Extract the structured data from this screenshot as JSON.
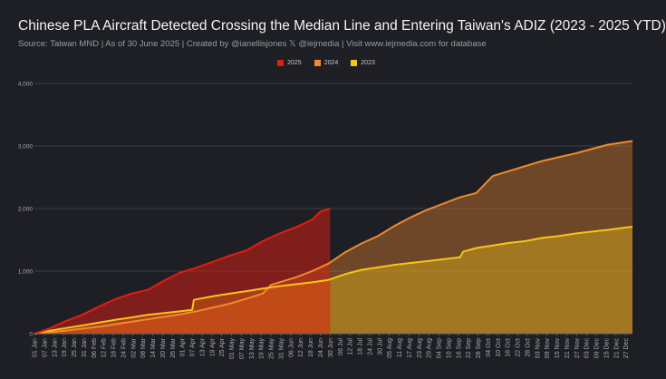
{
  "header": {
    "title": "Chinese PLA Aircraft Detected Crossing the Median Line and Entering Taiwan's ADIZ (2023 - 2025 YTD)",
    "subtitle": "Source: Taiwan MND | As of 30 June 2025 | Created by @ianellisjones 𝕏 @iejmedia | Visit www.iejmedia.com for database"
  },
  "legend": [
    {
      "label": "2025",
      "color": "#e01e10"
    },
    {
      "label": "2024",
      "color": "#f08a2c"
    },
    {
      "label": "2023",
      "color": "#f7c418"
    }
  ],
  "chart_data": {
    "type": "area",
    "title": "Chinese PLA Aircraft Detected Crossing the Median Line and Entering Taiwan's ADIZ (2023 - 2025 YTD)",
    "xlabel": "",
    "ylabel": "",
    "x_unit": "day of year",
    "xlim": [
      1,
      365
    ],
    "ylim": [
      0,
      4000
    ],
    "y_ticks": [
      0,
      1000,
      2000,
      3000,
      4000
    ],
    "y_tick_labels": [
      "0",
      "1,000",
      "2,000",
      "3,000",
      "4,000"
    ],
    "x_ticks": [
      1,
      7,
      13,
      19,
      25,
      31,
      37,
      43,
      49,
      55,
      61,
      67,
      73,
      79,
      85,
      91,
      97,
      103,
      109,
      115,
      121,
      127,
      133,
      139,
      145,
      151,
      157,
      163,
      169,
      175,
      181,
      187,
      193,
      199,
      205,
      211,
      217,
      223,
      229,
      235,
      241,
      247,
      253,
      259,
      265,
      271,
      277,
      283,
      289,
      295,
      301,
      307,
      313,
      319,
      325,
      331,
      337,
      343,
      349,
      355,
      361
    ],
    "x_tick_labels": [
      "01 Jan",
      "07 Jan",
      "13 Jan",
      "19 Jan",
      "25 Jan",
      "31 Jan",
      "06 Feb",
      "12 Feb",
      "18 Feb",
      "24 Feb",
      "02 Mar",
      "08 Mar",
      "14 Mar",
      "20 Mar",
      "26 Mar",
      "01 Apr",
      "07 Apr",
      "13 Apr",
      "19 Apr",
      "25 Apr",
      "01 May",
      "07 May",
      "13 May",
      "19 May",
      "25 May",
      "31 May",
      "06 Jun",
      "12 Jun",
      "18 Jun",
      "24 Jun",
      "30 Jun",
      "06 Jul",
      "12 Jul",
      "18 Jul",
      "24 Jul",
      "30 Jul",
      "05 Aug",
      "11 Aug",
      "17 Aug",
      "23 Aug",
      "29 Aug",
      "04 Sep",
      "10 Sep",
      "16 Sep",
      "22 Sep",
      "28 Sep",
      "04 Oct",
      "10 Oct",
      "16 Oct",
      "22 Oct",
      "28 Oct",
      "03 Nov",
      "09 Nov",
      "15 Nov",
      "21 Nov",
      "27 Nov",
      "03 Dec",
      "09 Dec",
      "15 Dec",
      "21 Dec",
      "27 Dec"
    ],
    "grid": true,
    "legend_position": "top-center",
    "series": [
      {
        "name": "2023",
        "color": "#f7c418",
        "x": [
          1,
          10,
          20,
          30,
          40,
          50,
          60,
          70,
          80,
          90,
          97,
          98,
          110,
          120,
          130,
          140,
          150,
          160,
          170,
          180,
          190,
          200,
          210,
          220,
          230,
          240,
          250,
          260,
          262,
          270,
          280,
          290,
          300,
          310,
          320,
          330,
          340,
          350,
          365
        ],
        "values": [
          0,
          45,
          90,
          130,
          175,
          220,
          260,
          300,
          330,
          360,
          380,
          540,
          600,
          640,
          680,
          720,
          760,
          790,
          820,
          860,
          950,
          1020,
          1060,
          1100,
          1130,
          1160,
          1190,
          1220,
          1310,
          1370,
          1410,
          1450,
          1480,
          1530,
          1560,
          1600,
          1630,
          1660,
          1710
        ]
      },
      {
        "name": "2024",
        "color": "#f08a2c",
        "x": [
          1,
          10,
          20,
          30,
          40,
          50,
          60,
          70,
          80,
          90,
          100,
          110,
          120,
          130,
          140,
          145,
          150,
          160,
          170,
          180,
          190,
          200,
          210,
          220,
          230,
          240,
          250,
          260,
          270,
          280,
          290,
          300,
          310,
          320,
          330,
          340,
          350,
          365
        ],
        "values": [
          0,
          20,
          50,
          80,
          110,
          150,
          190,
          230,
          270,
          310,
          360,
          420,
          480,
          560,
          640,
          780,
          820,
          900,
          1000,
          1120,
          1300,
          1440,
          1560,
          1720,
          1860,
          1980,
          2080,
          2180,
          2250,
          2520,
          2600,
          2680,
          2760,
          2820,
          2880,
          2950,
          3020,
          3080
        ]
      },
      {
        "name": "2025",
        "color": "#e01e10",
        "x": [
          1,
          10,
          20,
          30,
          40,
          50,
          60,
          70,
          80,
          90,
          100,
          110,
          120,
          130,
          140,
          150,
          160,
          170,
          175,
          181
        ],
        "values": [
          0,
          80,
          200,
          300,
          430,
          550,
          640,
          700,
          850,
          980,
          1060,
          1150,
          1250,
          1330,
          1480,
          1600,
          1700,
          1820,
          1950,
          2000
        ]
      }
    ]
  }
}
